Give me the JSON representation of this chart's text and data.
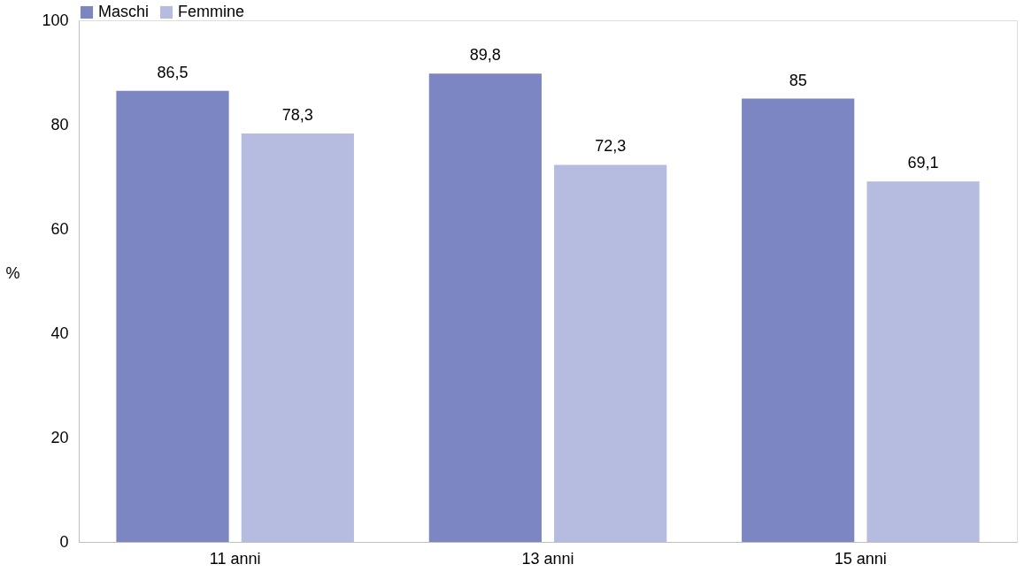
{
  "chart_data": {
    "type": "bar",
    "ylabel": "%",
    "categories": [
      "11 anni",
      "13 anni",
      "15 anni"
    ],
    "series": [
      {
        "name": "Maschi",
        "color": "#7b86c2",
        "values": [
          86.5,
          89.8,
          85
        ],
        "value_labels": [
          "86,5",
          "89,8",
          "85"
        ]
      },
      {
        "name": "Femmine",
        "color": "#b6bcdf",
        "values": [
          78.3,
          72.3,
          69.1
        ],
        "value_labels": [
          "78,3",
          "72,3",
          "69,1"
        ]
      }
    ],
    "ylim": [
      0,
      100
    ],
    "yticks": [
      0,
      20,
      40,
      60,
      80,
      100
    ],
    "grid": false,
    "legend": "top"
  }
}
